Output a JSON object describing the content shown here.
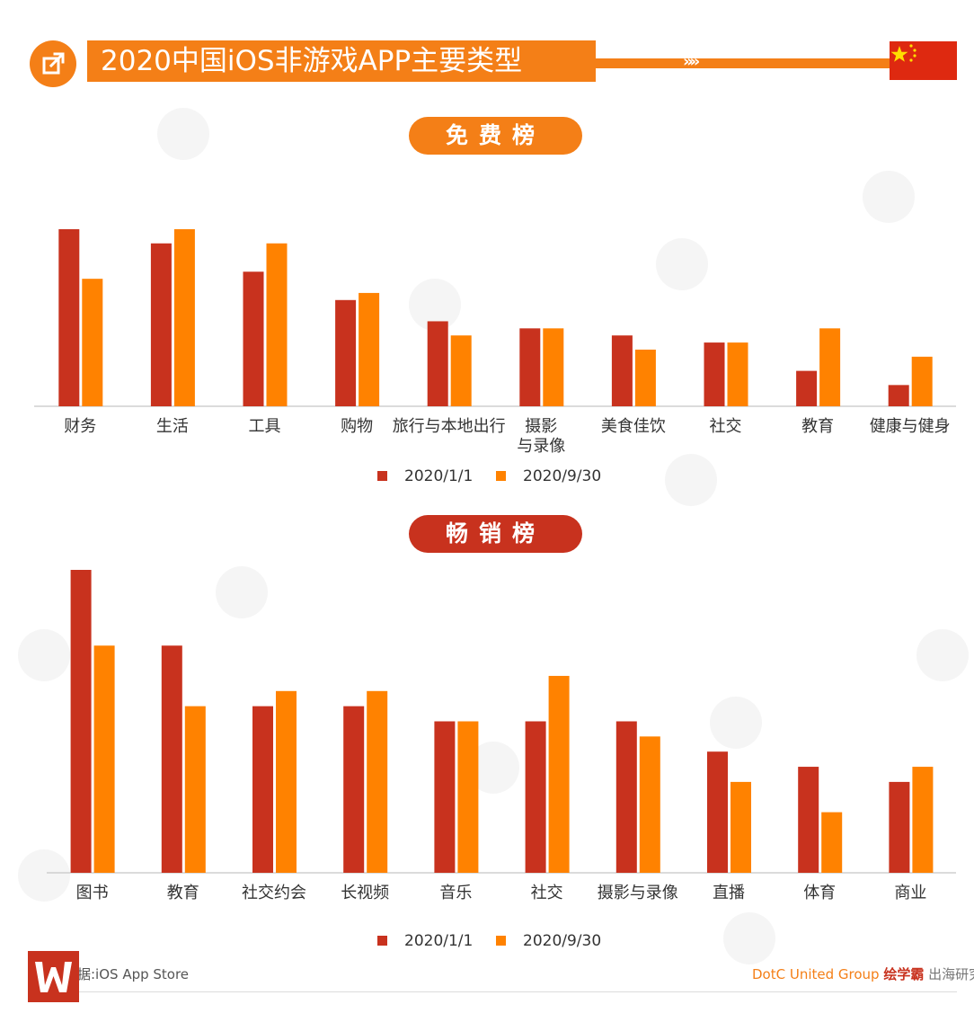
{
  "header": {
    "title": "2020中国iOS非游戏APP主要类型",
    "chevrons": "»»"
  },
  "sections": {
    "free_label": "免费榜",
    "grossing_label": "畅销榜"
  },
  "legend": {
    "series1": "2020/1/1",
    "series2": "2020/9/30"
  },
  "colors": {
    "accent_orange": "#f47f17",
    "series1": "#c8321e",
    "series2": "#ff8200",
    "flag_red": "#de2910",
    "flag_star": "#ffde00"
  },
  "footer": {
    "source": "据:iOS App Store",
    "credit_prefix": "DotC United Group",
    "credit_red": "绘学霸",
    "credit_suffix": "出海研究院"
  },
  "chart_data": [
    {
      "type": "bar",
      "title": "免费榜",
      "categories": [
        "财务",
        "生活",
        "工具",
        "购物",
        "旅行与本地出行",
        "摄影\n与录像",
        "美食佳饮",
        "社交",
        "教育",
        "健康与健身"
      ],
      "series": [
        {
          "name": "2020/1/1",
          "values": [
            25,
            23,
            19,
            15,
            12,
            11,
            10,
            9,
            5,
            3
          ]
        },
        {
          "name": "2020/9/30",
          "values": [
            18,
            25,
            23,
            16,
            10,
            11,
            8,
            9,
            11,
            7
          ]
        }
      ],
      "ylim": [
        0,
        30
      ],
      "grid": false,
      "legend_position": "bottom"
    },
    {
      "type": "bar",
      "title": "畅销榜",
      "categories": [
        "图书",
        "教育",
        "社交约会",
        "长视频",
        "音乐",
        "社交",
        "摄影与录像",
        "直播",
        "体育",
        "商业"
      ],
      "series": [
        {
          "name": "2020/1/1",
          "values": [
            20,
            15,
            11,
            11,
            10,
            10,
            10,
            8,
            7,
            6
          ]
        },
        {
          "name": "2020/9/30",
          "values": [
            15,
            11,
            12,
            12,
            10,
            13,
            9,
            6,
            4,
            7
          ]
        }
      ],
      "ylim": [
        0,
        20
      ],
      "grid": false,
      "legend_position": "bottom"
    }
  ]
}
